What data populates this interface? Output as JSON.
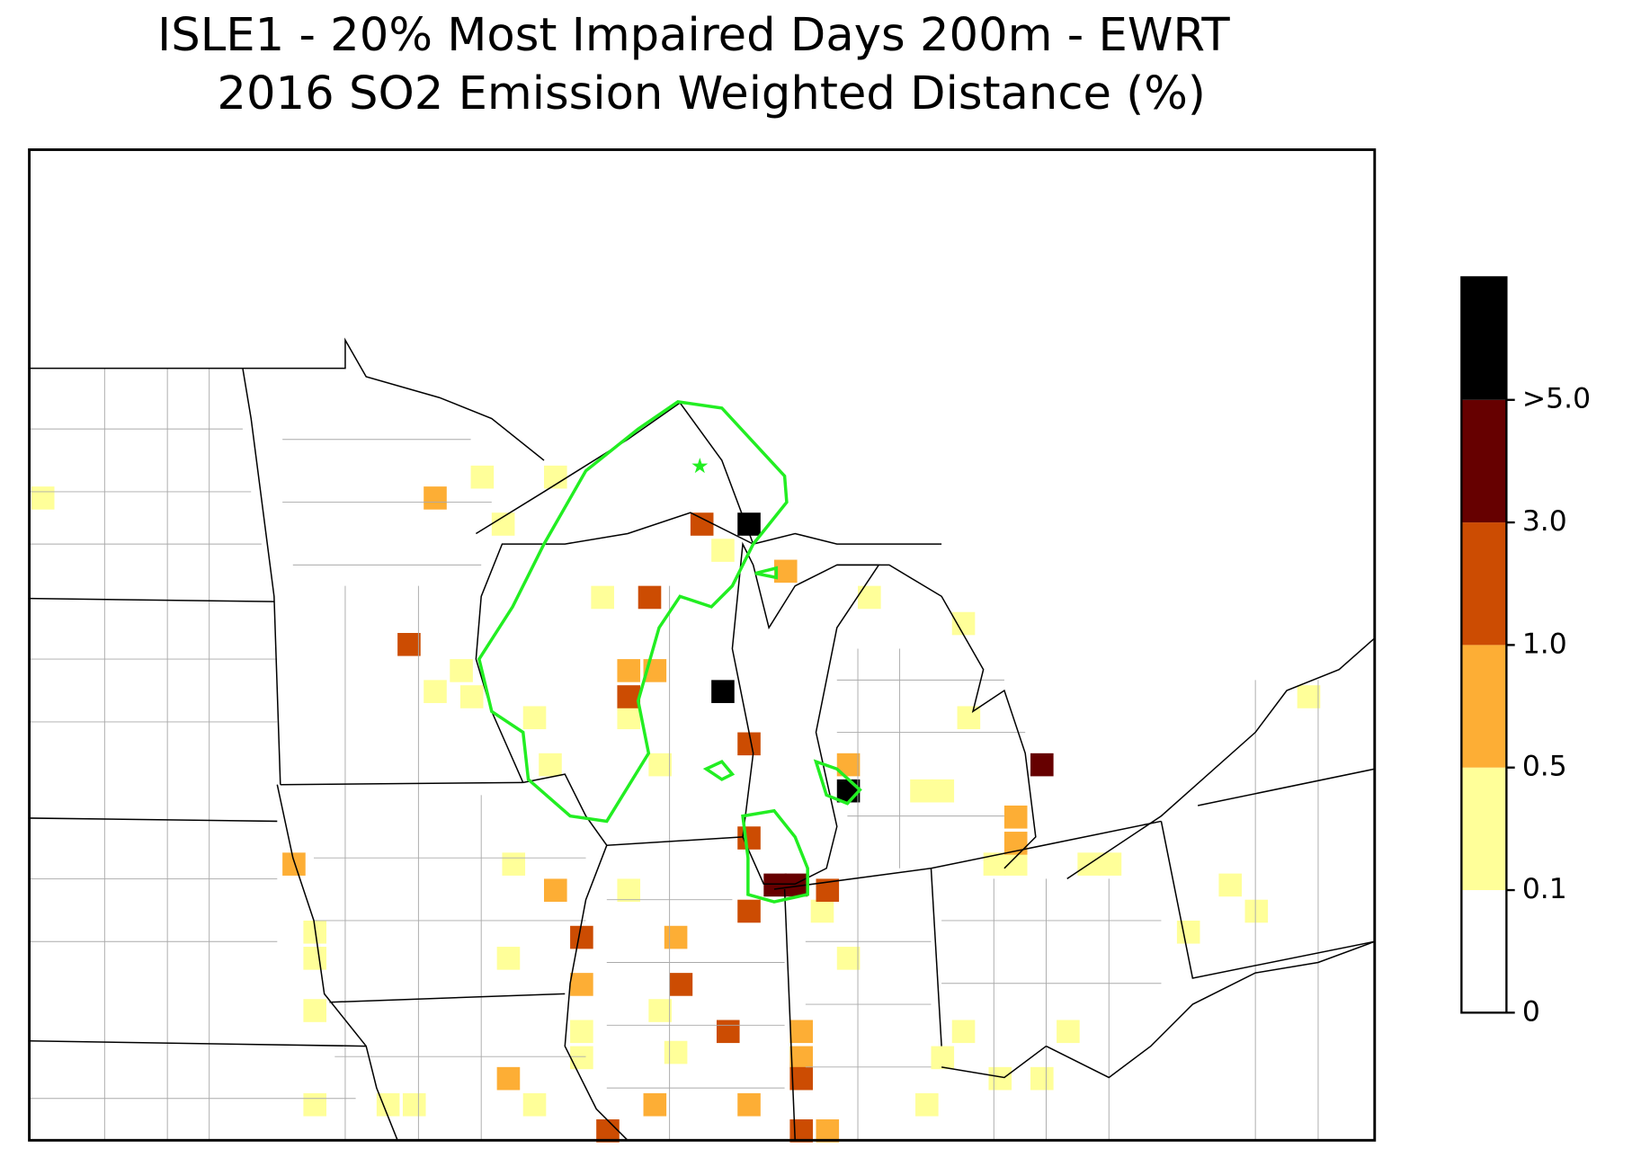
{
  "title": [
    "ISLE1 - 20% Most Impaired Days 200m - EWRT",
    "2016 SO2 Emission Weighted Distance (%)"
  ],
  "colorbar": {
    "labels": [
      "0",
      "0.1",
      "0.5",
      "1.0",
      "3.0",
      ">5.0"
    ],
    "colors": [
      "#ffffff",
      "#ffff99",
      "#fdae35",
      "#cc4c02",
      "#660000",
      "#000000"
    ]
  }
}
